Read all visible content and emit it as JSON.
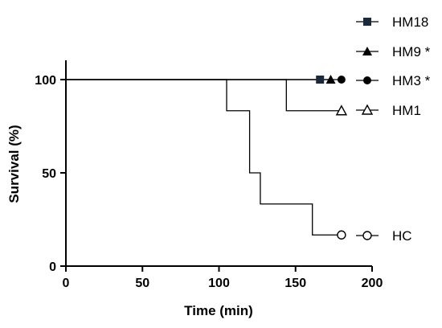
{
  "chart_data": {
    "type": "line",
    "subtype": "kaplan-meier step",
    "title": "",
    "xlabel": "Time (min)",
    "ylabel": "Survival (%)",
    "xlim": [
      0,
      200
    ],
    "ylim": [
      0,
      100
    ],
    "xticks": [
      "0",
      "50",
      "100",
      "150",
      "200"
    ],
    "yticks": [
      "0",
      "50",
      "100"
    ],
    "grid": false,
    "legend_placement": "right",
    "series": [
      {
        "name": "HM18",
        "marker": "filled-square",
        "color": "#1b2a3a",
        "x": [
          0,
          166
        ],
        "y": [
          100,
          100
        ],
        "end": [
          166,
          100
        ]
      },
      {
        "name": "HM9 *",
        "marker": "filled-triangle",
        "color": "#000000",
        "x": [
          0,
          173
        ],
        "y": [
          100,
          100
        ],
        "end": [
          173,
          100
        ]
      },
      {
        "name": "HM3 *",
        "marker": "filled-circle",
        "color": "#000000",
        "x": [
          0,
          180
        ],
        "y": [
          100,
          100
        ],
        "end": [
          180,
          100
        ]
      },
      {
        "name": "HM1",
        "marker": "open-triangle",
        "color": "#000000",
        "x": [
          0,
          144,
          144,
          180
        ],
        "y": [
          100,
          100,
          83.3,
          83.3
        ],
        "end": [
          180,
          83.3
        ]
      },
      {
        "name": "HC",
        "marker": "open-circle",
        "color": "#000000",
        "x": [
          0,
          105,
          105,
          120,
          120,
          127,
          127,
          161,
          161,
          180
        ],
        "y": [
          100,
          100,
          83.3,
          83.3,
          50,
          50,
          33.3,
          33.3,
          16.7,
          16.7
        ],
        "end": [
          180,
          16.7
        ]
      }
    ]
  }
}
